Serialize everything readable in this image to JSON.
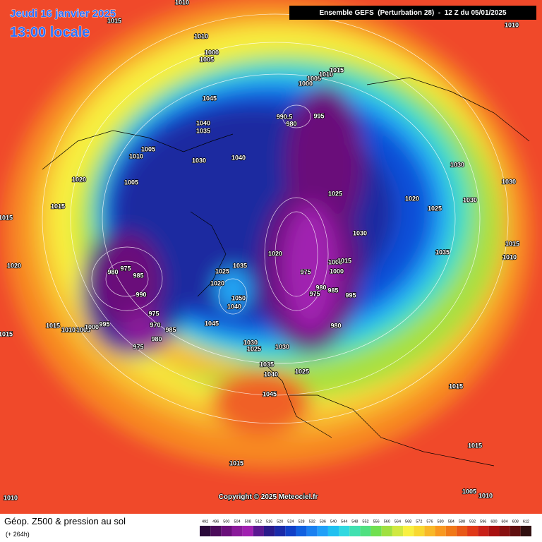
{
  "header": {
    "date": "Jeudi 16 janvier 2025",
    "time": "13:00 locale",
    "run": "Ensemble GEFS  (Perturbation 28)  -  12 Z du 05/01/2025"
  },
  "copyright": "Copyright © 2025 Meteociel.fr",
  "footer": {
    "title": "Géop. Z500 & pression au sol",
    "lead": "(+ 264h)"
  },
  "scale": {
    "values": [
      492,
      496,
      500,
      504,
      508,
      512,
      516,
      520,
      524,
      528,
      532,
      536,
      540,
      544,
      548,
      552,
      556,
      560,
      564,
      568,
      572,
      576,
      580,
      584,
      588,
      592,
      596,
      600,
      604,
      608,
      612
    ],
    "colors": [
      "#2a0a3a",
      "#4b0c5a",
      "#6a0f7a",
      "#8a1a9a",
      "#a020b0",
      "#5a1890",
      "#2a1a8a",
      "#1a2aa8",
      "#1040c8",
      "#1060e0",
      "#1a80f0",
      "#20a0f8",
      "#20c0f0",
      "#30d8e0",
      "#40e0b0",
      "#50e080",
      "#70e050",
      "#a0e040",
      "#d0e840",
      "#f8f040",
      "#f8d830",
      "#f8b828",
      "#f89820",
      "#f07818",
      "#e85818",
      "#e03818",
      "#c82018",
      "#a81010",
      "#881010",
      "#601010",
      "#301010"
    ]
  },
  "pressure_labels": [
    "1010",
    "1015",
    "1010",
    "1000",
    "1005",
    "1045",
    "1040",
    "1035",
    "1005",
    "1010",
    "1030",
    "1040",
    "1020",
    "1005",
    "1015",
    "1015",
    "1020",
    "980",
    "975",
    "985",
    "990",
    "975",
    "970",
    "985",
    "975",
    "980",
    "995",
    "1015",
    "1010",
    "1005",
    "1000",
    "1015",
    "1045",
    "1030",
    "1025",
    "1030",
    "1035",
    "1040",
    "1025",
    "1045",
    "1015",
    "1010",
    "990.5",
    "980",
    "995",
    "1005",
    "1010",
    "1015",
    "1000",
    "1025",
    "1030",
    "1020",
    "975",
    "1005",
    "1015",
    "1000",
    "980",
    "975",
    "985",
    "995",
    "980",
    "1025",
    "1035",
    "1020",
    "1050",
    "1040",
    "1020",
    "1025",
    "1030",
    "1030",
    "1030",
    "1035",
    "1010",
    "1015",
    "1015",
    "1015",
    "1010",
    "1005",
    "1010"
  ]
}
